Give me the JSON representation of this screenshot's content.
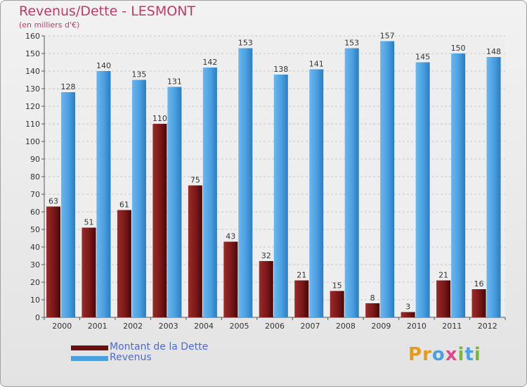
{
  "header": {
    "title": "Revenus/Dette - LESMONT",
    "subtitle": "(en milliers d'€)"
  },
  "chart_data": {
    "type": "bar",
    "title": "Revenus/Dette - LESMONT",
    "subtitle": "(en milliers d'€)",
    "xlabel": "",
    "ylabel": "",
    "ylim": [
      0,
      160
    ],
    "ytick_step": 10,
    "grid": true,
    "categories": [
      "2000",
      "2001",
      "2002",
      "2003",
      "2004",
      "2005",
      "2006",
      "2007",
      "2008",
      "2009",
      "2010",
      "2011",
      "2012"
    ],
    "series": [
      {
        "name": "Montant de la Dette",
        "color": "#7a1a1a",
        "values": [
          63,
          51,
          61,
          110,
          75,
          43,
          32,
          21,
          15,
          8,
          3,
          21,
          16
        ]
      },
      {
        "name": "Revenus",
        "color": "#4a9fe0",
        "values": [
          128,
          140,
          135,
          131,
          142,
          153,
          138,
          141,
          153,
          157,
          145,
          150,
          148
        ]
      }
    ],
    "legend": "bottom-left"
  },
  "legend": {
    "items": [
      {
        "label": "Montant de la Dette",
        "color": "#6b0f0f"
      },
      {
        "label": "Revenus",
        "color": "#4a9fe0"
      }
    ]
  },
  "logo": {
    "text": "Proxiti",
    "letters": [
      {
        "ch": "P",
        "color": "#e69a1a"
      },
      {
        "ch": "r",
        "color": "#e69a1a"
      },
      {
        "ch": "o",
        "color": "#4aa0e0"
      },
      {
        "ch": "x",
        "color": "#e04a8a"
      },
      {
        "ch": "i",
        "color": "#7ab83a"
      },
      {
        "ch": "t",
        "color": "#4aa0e0"
      },
      {
        "ch": "i",
        "color": "#7ab83a"
      }
    ]
  }
}
